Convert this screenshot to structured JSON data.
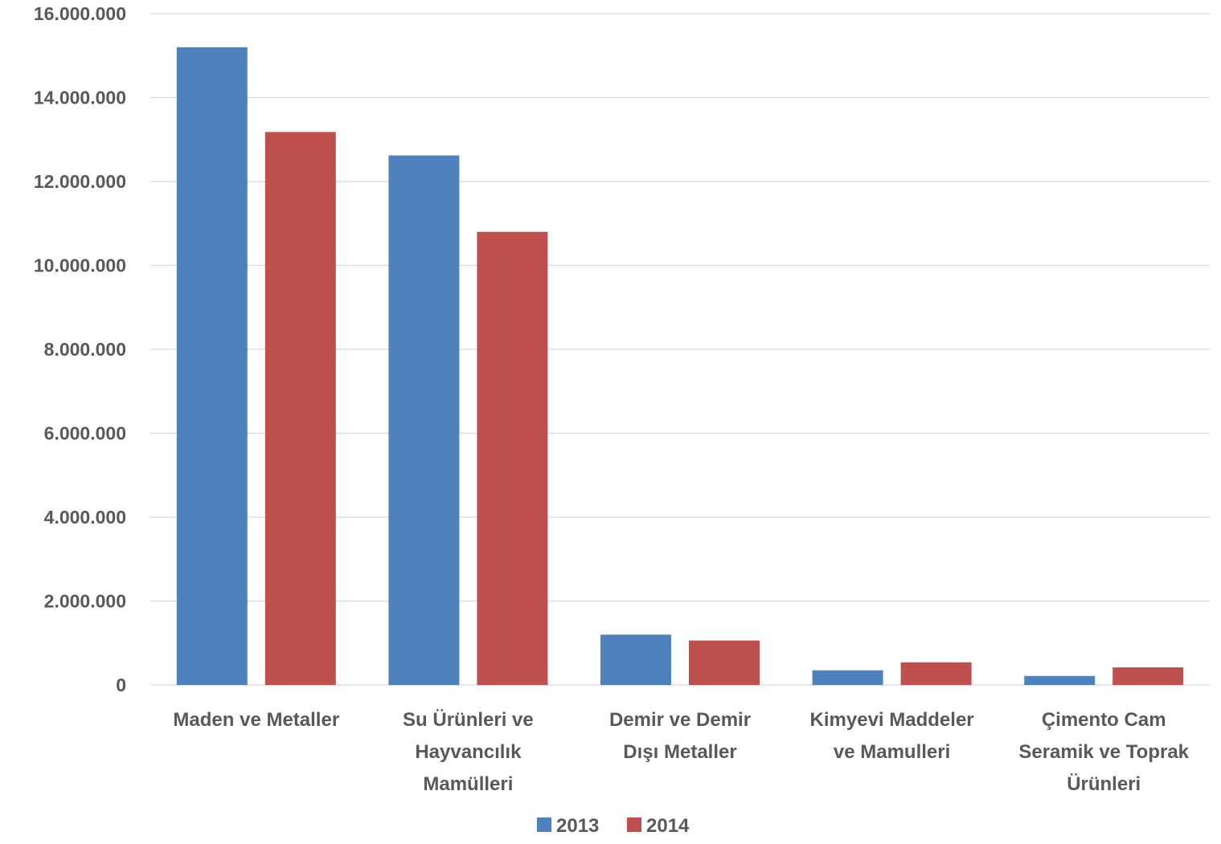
{
  "chart_data": {
    "type": "bar",
    "title": "",
    "xlabel": "",
    "ylabel": "",
    "ylim": [
      0,
      16000000
    ],
    "yticks": [
      0,
      2000000,
      4000000,
      6000000,
      8000000,
      10000000,
      12000000,
      14000000,
      16000000
    ],
    "ytick_labels": [
      "0",
      "2.000.000",
      "4.000.000",
      "6.000.000",
      "8.000.000",
      "10.000.000",
      "12.000.000",
      "14.000.000",
      "16.000.000"
    ],
    "categories": [
      [
        "Maden ve Metaller"
      ],
      [
        "Su Ürünleri ve",
        "Hayvancılık",
        "Mamülleri"
      ],
      [
        "Demir ve Demir",
        "Dışı Metaller"
      ],
      [
        "Kimyevi Maddeler",
        "ve Mamulleri"
      ],
      [
        "Çimento Cam",
        "Seramik ve Toprak",
        "Ürünleri"
      ]
    ],
    "series": [
      {
        "name": "2013",
        "color": "#4f81bd",
        "values": [
          15200000,
          12620000,
          1200000,
          350000,
          215000
        ]
      },
      {
        "name": "2014",
        "color": "#c0504d",
        "values": [
          13180000,
          10800000,
          1060000,
          540000,
          420000
        ]
      }
    ],
    "grid": true,
    "legend": "bottom"
  }
}
